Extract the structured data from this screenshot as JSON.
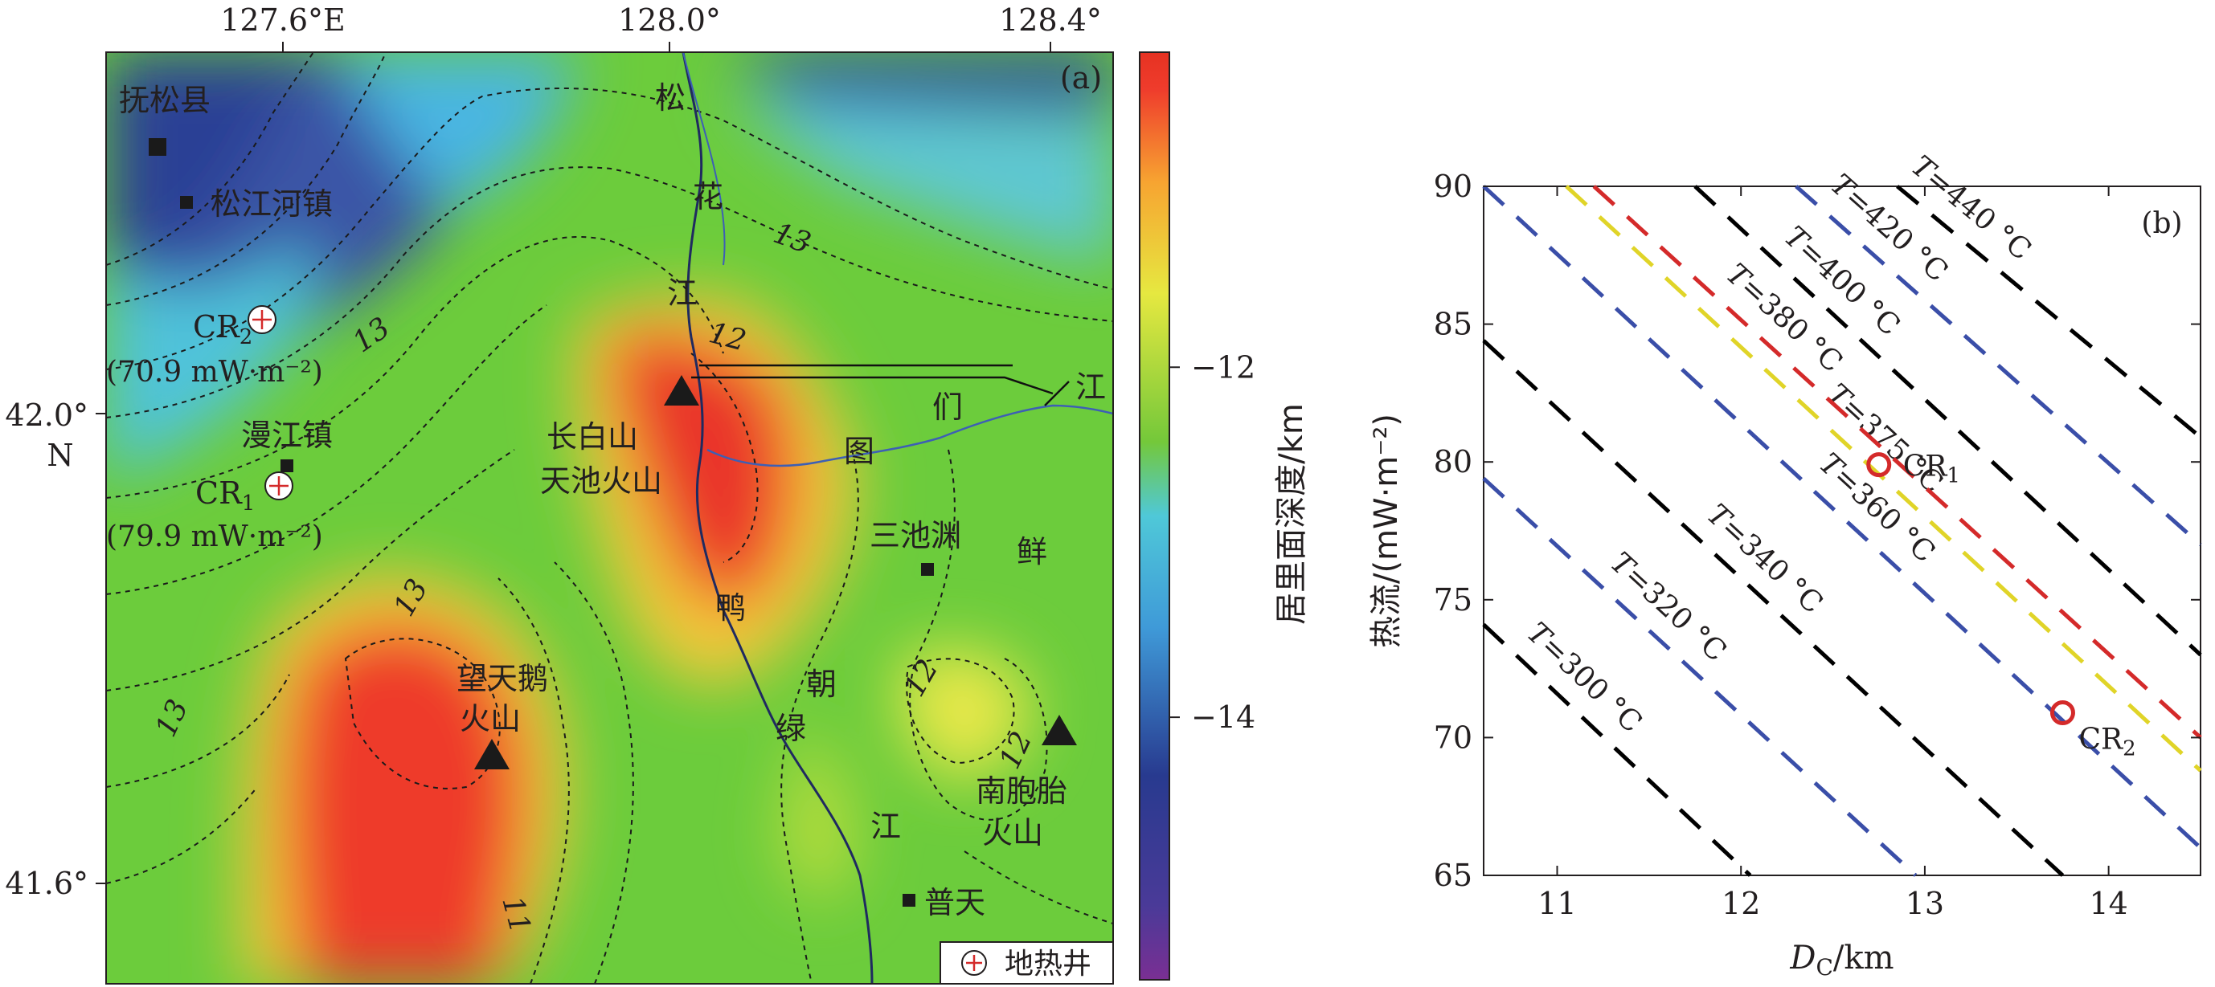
{
  "map_panel": {
    "panel_label": "(a)",
    "lon_ticks": [
      "127.6°E",
      "128.0°",
      "128.4°"
    ],
    "lat_ticks": [
      "42.0°",
      "41.6°"
    ],
    "lat_ticks_n": [
      "N"
    ],
    "colorbar": {
      "label": "居里面深度/km",
      "ticks": [
        {
          "value": -12,
          "label": "−12"
        },
        {
          "value": -14,
          "label": "−14"
        }
      ],
      "range": [
        -15.5,
        -10.2
      ],
      "colors": [
        "#7a2f93",
        "#283a8f",
        "#2f5ab0",
        "#3f9ad8",
        "#4fc8d8",
        "#6ecf5a",
        "#74c83a",
        "#e6e840",
        "#f7a431",
        "#ef3c2c",
        "#e63222"
      ]
    },
    "contour_labels": [
      "13",
      "12",
      "13",
      "13",
      "13",
      "12",
      "12",
      "11"
    ],
    "places": [
      {
        "name": "抚松县"
      },
      {
        "name": "松江河镇"
      },
      {
        "name": "漫江镇"
      },
      {
        "name": "三池渊"
      },
      {
        "name": "普天"
      }
    ],
    "volcanoes": [
      {
        "name_line1": "长白山",
        "name_line2": "天池火山"
      },
      {
        "name_line1": "望天鹅",
        "name_line2": "火山"
      },
      {
        "name_line1": "南胞胎",
        "name_line2": "火山"
      }
    ],
    "wells": [
      {
        "label_main": "CR",
        "label_sub": "2",
        "heat_flow": "(70.9 mW·m⁻²)"
      },
      {
        "label_main": "CR",
        "label_sub": "1",
        "heat_flow": "(79.9 mW·m⁻²)"
      }
    ],
    "river_chars": [
      "松",
      "花",
      "江",
      "图",
      "们",
      "江",
      "鸭",
      "朝",
      "绿",
      "鲜",
      "江"
    ],
    "legend": {
      "label": "地热井",
      "icon": "geothermal-well-icon"
    }
  },
  "chart_data": {
    "type": "line",
    "panel_label": "(b)",
    "xlabel_main": "D",
    "xlabel_sub": "C",
    "xlabel_unit": "/km",
    "ylabel": "热流/(mW·m⁻²)",
    "xlim": [
      10.6,
      14.5
    ],
    "ylim": [
      65,
      90
    ],
    "x_ticks": [
      11,
      12,
      13,
      14
    ],
    "y_ticks": [
      65,
      70,
      75,
      80,
      85,
      90
    ],
    "series": [
      {
        "name": "T=300 °C",
        "color": "#000000",
        "x": [
          10.6,
          12.05
        ],
        "y": [
          74.1,
          65.0
        ]
      },
      {
        "name": "T=320 °C",
        "color": "#3a4ea8",
        "x": [
          10.6,
          12.95
        ],
        "y": [
          79.4,
          65.0
        ]
      },
      {
        "name": "T=340 °C",
        "color": "#000000",
        "x": [
          10.6,
          13.75
        ],
        "y": [
          84.4,
          65.0
        ]
      },
      {
        "name": "T=360 °C",
        "color": "#3a4ea8",
        "x": [
          10.6,
          14.5
        ],
        "y": [
          90.0,
          66.0
        ]
      },
      {
        "name": "T=375 °C",
        "color": "#e0d428",
        "x": [
          11.05,
          14.5
        ],
        "y": [
          90.0,
          68.8
        ]
      },
      {
        "name": "T=380 °C",
        "color": "#d42a2a",
        "x": [
          11.2,
          14.5
        ],
        "y": [
          90.0,
          70.0
        ]
      },
      {
        "name": "T=400 °C",
        "color": "#000000",
        "x": [
          11.75,
          14.5
        ],
        "y": [
          90.0,
          73.0
        ]
      },
      {
        "name": "T=420 °C",
        "color": "#3a4ea8",
        "x": [
          12.3,
          14.5
        ],
        "y": [
          90.0,
          77.0
        ]
      },
      {
        "name": "T=440 °C",
        "color": "#000000",
        "x": [
          12.85,
          14.5
        ],
        "y": [
          90.0,
          80.9
        ]
      }
    ],
    "points": [
      {
        "label_main": "CR",
        "label_sub": "1",
        "x": 12.75,
        "y": 79.9,
        "color": "#d42a2a"
      },
      {
        "label_main": "CR",
        "label_sub": "2",
        "x": 13.75,
        "y": 70.9,
        "color": "#d42a2a"
      }
    ]
  }
}
